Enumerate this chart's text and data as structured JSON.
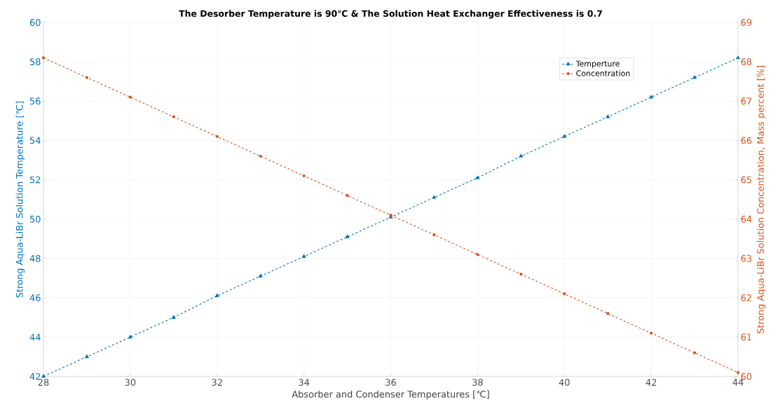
{
  "chart_data": {
    "type": "line",
    "title": "The Desorber Temperature is 90℃ & The Solution Heat Exchanger Effectiveness is 0.7",
    "xlabel": "Absorber and Condenser Temperatures [℃]",
    "ylabel": "Strong Aqua-LiBr Solution Temperature [℃]",
    "y2label": "Strong Aqua-LiBr Solution Concentration, Mass percent [%]",
    "x": [
      28,
      29,
      30,
      31,
      32,
      33,
      34,
      35,
      36,
      37,
      38,
      39,
      40,
      41,
      42,
      43,
      44
    ],
    "series": [
      {
        "name": "Temperture",
        "color": "#0072bd",
        "marker": "triangle",
        "values": [
          42.0,
          43.0,
          44.0,
          45.0,
          46.1,
          47.1,
          48.1,
          49.1,
          50.1,
          51.1,
          52.1,
          53.2,
          54.2,
          55.2,
          56.2,
          57.2,
          58.2
        ]
      },
      {
        "name": "Concentration",
        "color": "#d95319",
        "marker": "circle",
        "axis": "y2",
        "values": [
          68.1,
          67.6,
          67.1,
          66.6,
          66.1,
          65.6,
          65.1,
          64.6,
          64.1,
          63.6,
          63.1,
          62.6,
          62.1,
          61.6,
          61.1,
          60.6,
          60.1
        ]
      }
    ],
    "xlim": [
      28,
      44
    ],
    "xticks": [
      28,
      30,
      32,
      34,
      36,
      38,
      40,
      42,
      44
    ],
    "ylim": [
      42,
      60
    ],
    "yticks": [
      42,
      44,
      46,
      48,
      50,
      52,
      54,
      56,
      58,
      60
    ],
    "y2lim": [
      60,
      69
    ],
    "y2ticks": [
      60,
      61,
      62,
      63,
      64,
      65,
      66,
      67,
      68,
      69
    ],
    "grid": true,
    "legend": "top right",
    "line_style": "dashed"
  }
}
